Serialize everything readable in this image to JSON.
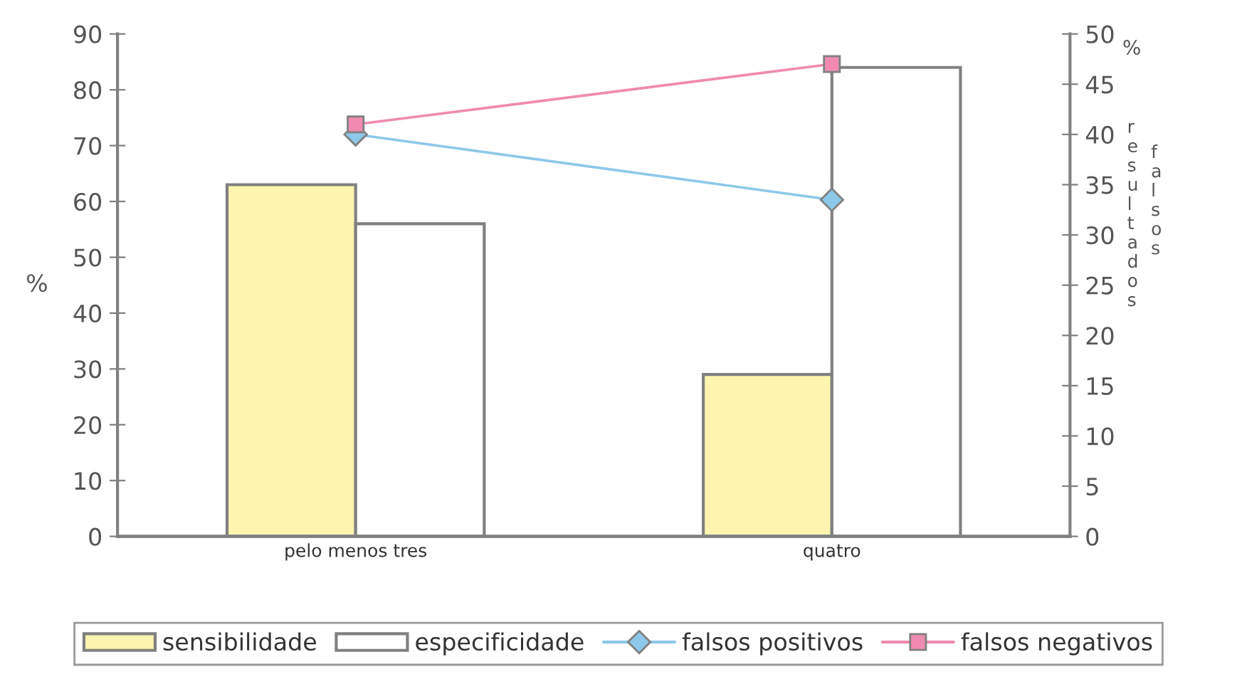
{
  "chart_data": {
    "type": "bar",
    "categories": [
      "pelo menos tres",
      "quatro"
    ],
    "ylabel": "%",
    "y2label": "% resultados falsos",
    "ylim": [
      0,
      90
    ],
    "yticks": [
      0,
      10,
      20,
      30,
      40,
      50,
      60,
      70,
      80,
      90
    ],
    "y2lim": [
      0,
      50
    ],
    "y2ticks": [
      0,
      5,
      10,
      15,
      20,
      25,
      30,
      35,
      40,
      45,
      50
    ],
    "series": [
      {
        "name": "sensibilidade",
        "color": "#fff5b0",
        "values": [
          63,
          29
        ]
      },
      {
        "name": "especificidade",
        "color": "#ffffff",
        "values": [
          56,
          84
        ]
      },
      {
        "name": "falsos positivos",
        "type": "line",
        "axis": "y2",
        "marker": "diamond",
        "color": "#8ec8e8",
        "values": [
          40,
          33.5
        ]
      },
      {
        "name": "falsos negativos",
        "type": "line",
        "axis": "y2",
        "marker": "square",
        "color": "#f08ab0",
        "values": [
          41,
          47
        ]
      }
    ],
    "grid": false,
    "legend": "bottom"
  }
}
